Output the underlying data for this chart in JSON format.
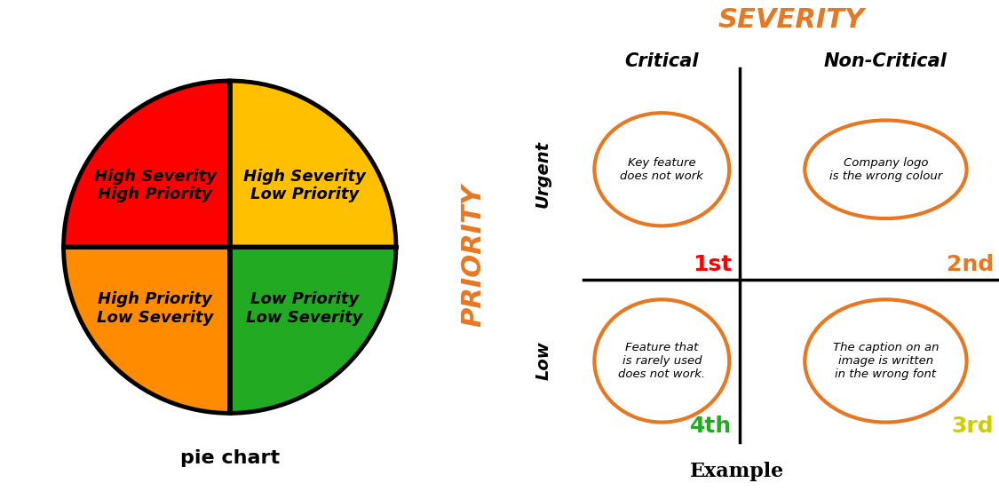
{
  "pie_colors": [
    "#FF0000",
    "#FFC000",
    "#FF8C00",
    "#22AA22"
  ],
  "pie_labels": [
    "High Severity\nHigh Priority",
    "High Severity\nLow Priority",
    "High Priority\nLow Severity",
    "Low Priority\nLow Severity"
  ],
  "pie_title": "pie chart",
  "severity_title": "SEVERITY",
  "severity_title_color": "#E87722",
  "critical_label": "Critical",
  "noncritical_label": "Non-Critical",
  "priority_label": "PRIORITY",
  "priority_label_color": "#E87722",
  "urgent_label": "Urgent",
  "low_label": "Low",
  "quadrant_texts": [
    "Key feature\ndoes not work",
    "Company logo\nis the wrong colour",
    "Feature that\nis rarely used\ndoes not work.",
    "The caption on an\nimage is written\nin the wrong font"
  ],
  "rank_labels": [
    "1st",
    "2nd",
    "4th",
    "3rd"
  ],
  "rank_colors": [
    "#FF0000",
    "#E87722",
    "#22AA22",
    "#CCCC00"
  ],
  "ellipse_color": "#E87722",
  "example_label": "Example",
  "background_color": "#FFFFFF"
}
